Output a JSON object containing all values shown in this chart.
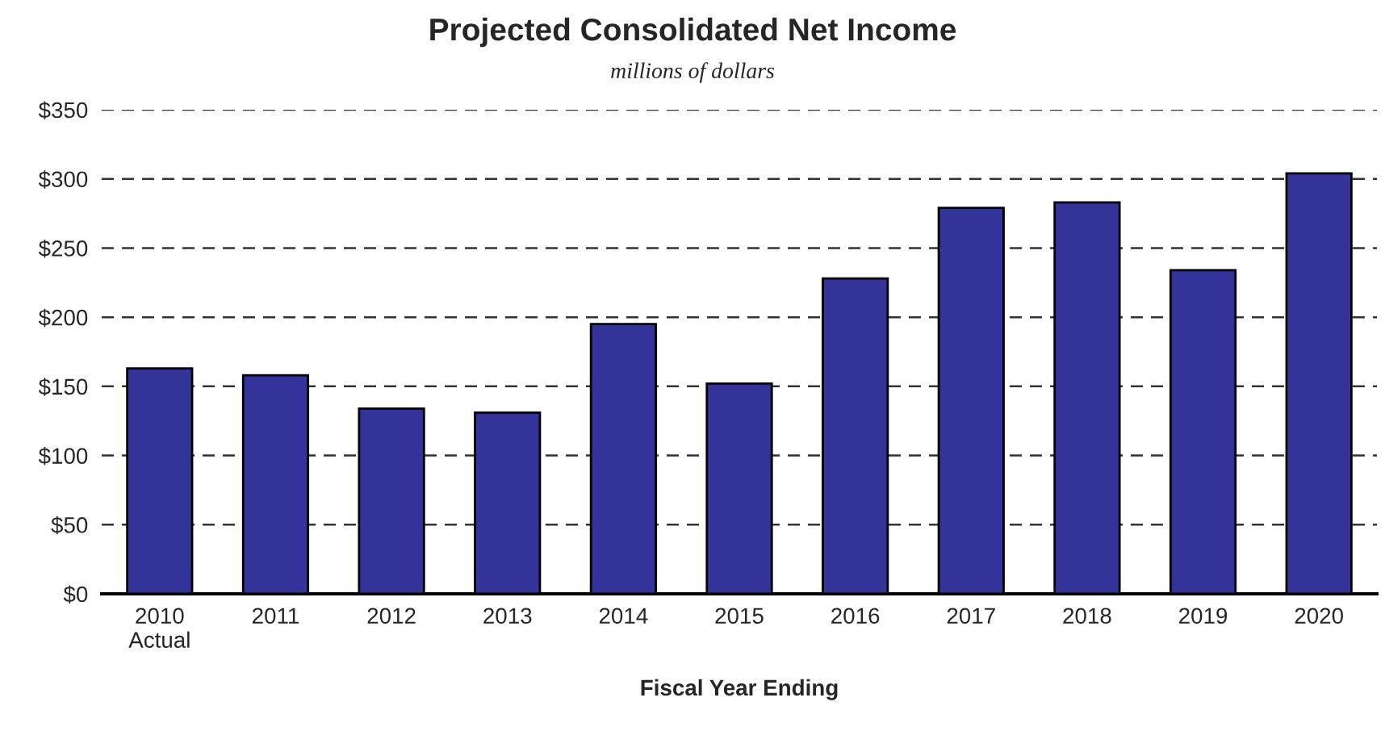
{
  "chart_data": {
    "type": "bar",
    "title": "Projected Consolidated Net Income",
    "subtitle": "millions of dollars",
    "xlabel": "Fiscal Year Ending",
    "categories": [
      "2010\nActual",
      "2011",
      "2012",
      "2013",
      "2014",
      "2015",
      "2016",
      "2017",
      "2018",
      "2019",
      "2020"
    ],
    "values": [
      163,
      158,
      134,
      131,
      195,
      152,
      228,
      279,
      283,
      234,
      304
    ],
    "color": "#333399",
    "ylim": [
      0,
      350
    ],
    "yticks": [
      {
        "value": 0,
        "label": "$0"
      },
      {
        "value": 50,
        "label": "$50"
      },
      {
        "value": 100,
        "label": "$100"
      },
      {
        "value": 150,
        "label": "$150"
      },
      {
        "value": 200,
        "label": "$200"
      },
      {
        "value": 250,
        "label": "$250"
      },
      {
        "value": 300,
        "label": "$300"
      },
      {
        "value": 350,
        "label": "$350"
      }
    ],
    "grid": "y",
    "line_style": "dashed",
    "legend": false
  }
}
